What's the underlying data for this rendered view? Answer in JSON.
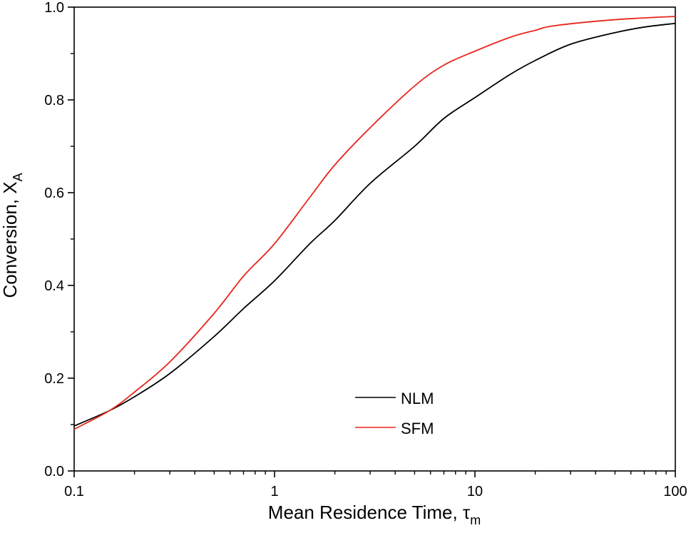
{
  "chart_data": {
    "type": "line",
    "title": "",
    "xlabel": "Mean Residence Time, τ",
    "xlabel_sub": "m",
    "ylabel": "Conversion, X",
    "ylabel_sub": "A",
    "xscale": "log",
    "xlim": [
      0.1,
      100
    ],
    "ylim": [
      0.0,
      1.0
    ],
    "xticks": [
      {
        "v": 0.1,
        "label": "0.1"
      },
      {
        "v": 1,
        "label": "1"
      },
      {
        "v": 10,
        "label": "10"
      },
      {
        "v": 100,
        "label": "100"
      }
    ],
    "yticks": [
      {
        "v": 0.0,
        "label": "0.0"
      },
      {
        "v": 0.2,
        "label": "0.2"
      },
      {
        "v": 0.4,
        "label": "0.4"
      },
      {
        "v": 0.6,
        "label": "0.6"
      },
      {
        "v": 0.8,
        "label": "0.8"
      },
      {
        "v": 1.0,
        "label": "1.0"
      }
    ],
    "grid": false,
    "legend_position": "bottom-center",
    "series": [
      {
        "name": "NLM",
        "color": "#000000",
        "x": [
          0.1,
          0.15,
          0.2,
          0.3,
          0.5,
          0.7,
          1,
          1.5,
          2,
          3,
          5,
          7,
          10,
          15,
          20,
          30,
          50,
          70,
          100
        ],
        "y": [
          0.097,
          0.13,
          0.16,
          0.21,
          0.29,
          0.35,
          0.41,
          0.49,
          0.54,
          0.62,
          0.7,
          0.76,
          0.805,
          0.855,
          0.885,
          0.92,
          0.945,
          0.957,
          0.965
        ]
      },
      {
        "name": "SFM",
        "color": "#e8261c",
        "x": [
          0.1,
          0.15,
          0.2,
          0.3,
          0.5,
          0.7,
          1,
          1.5,
          2,
          3,
          5,
          7,
          10,
          15,
          20,
          25,
          50,
          100
        ],
        "y": [
          0.09,
          0.13,
          0.17,
          0.235,
          0.34,
          0.42,
          0.49,
          0.59,
          0.66,
          0.74,
          0.83,
          0.875,
          0.905,
          0.935,
          0.95,
          0.96,
          0.973,
          0.98
        ]
      }
    ]
  }
}
